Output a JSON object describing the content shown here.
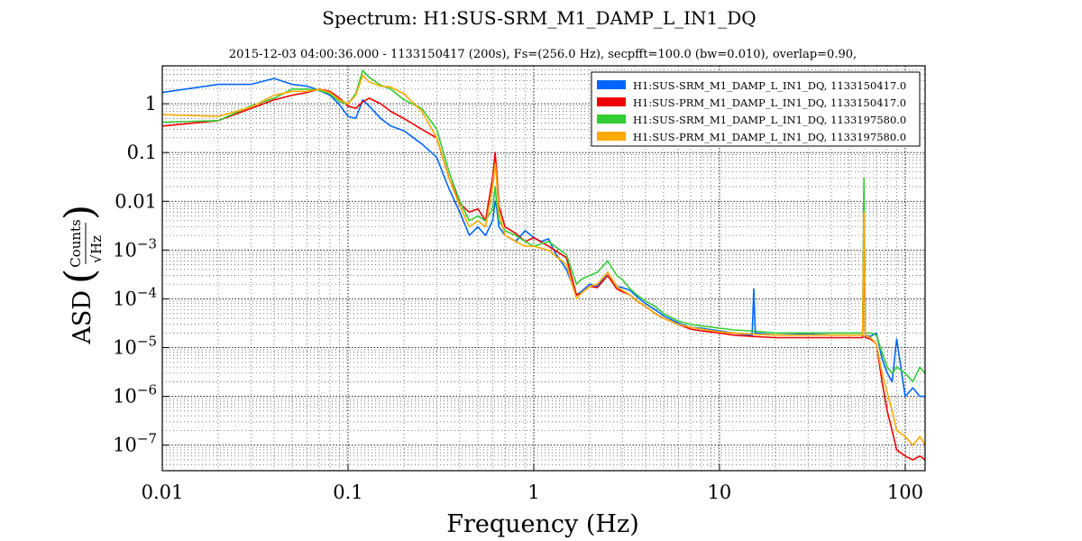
{
  "chart_data": {
    "type": "line",
    "title": "Spectrum: H1:SUS-SRM_M1_DAMP_L_IN1_DQ",
    "subtitle": "2015-12-03 04:00:36.000 - 1133150417 (200s), Fs=(256.0 Hz), secpfft=100.0 (bw=0.010), overlap=0.90,",
    "xlabel": "Frequency (Hz)",
    "ylabel": "ASD",
    "ylabel_fraction_numerator": "Counts",
    "ylabel_fraction_denominator": "Hz",
    "x_scale": "log",
    "y_scale": "log",
    "xlim": [
      0.01,
      128
    ],
    "ylim": [
      3e-08,
      6
    ],
    "grid": true,
    "legend_position": "top-right",
    "x_ticks": [
      {
        "value": 0.01,
        "label": "0.01"
      },
      {
        "value": 0.1,
        "label": "0.1"
      },
      {
        "value": 1,
        "label": "1"
      },
      {
        "value": 10,
        "label": "10"
      },
      {
        "value": 100,
        "label": "100"
      }
    ],
    "y_ticks": [
      {
        "value": 1,
        "label": "1",
        "base": "",
        "exp": ""
      },
      {
        "value": 0.1,
        "label": "0.1",
        "base": "",
        "exp": ""
      },
      {
        "value": 0.01,
        "label": "0.01",
        "base": "",
        "exp": ""
      },
      {
        "value": 0.001,
        "label": "",
        "base": "10",
        "exp": "−3"
      },
      {
        "value": 0.0001,
        "label": "",
        "base": "10",
        "exp": "−4"
      },
      {
        "value": 1e-05,
        "label": "",
        "base": "10",
        "exp": "−5"
      },
      {
        "value": 1e-06,
        "label": "",
        "base": "10",
        "exp": "−6"
      },
      {
        "value": 1e-07,
        "label": "",
        "base": "10",
        "exp": "−7"
      }
    ],
    "series": [
      {
        "name": "H1:SUS-SRM_M1_DAMP_L_IN1_DQ, 1133150417.0",
        "color": "#0066ff",
        "x": [
          0.01,
          0.02,
          0.03,
          0.04,
          0.05,
          0.06,
          0.07,
          0.08,
          0.09,
          0.1,
          0.11,
          0.12,
          0.13,
          0.15,
          0.17,
          0.2,
          0.25,
          0.3,
          0.35,
          0.4,
          0.45,
          0.5,
          0.55,
          0.6,
          0.62,
          0.63,
          0.65,
          0.7,
          0.8,
          0.9,
          1.0,
          1.1,
          1.2,
          1.3,
          1.5,
          1.7,
          1.8,
          2.0,
          2.2,
          2.5,
          2.8,
          3.0,
          3.3,
          3.6,
          4.0,
          4.5,
          5.0,
          6.0,
          7.0,
          8.0,
          10,
          12,
          15,
          15.3,
          15.6,
          20,
          30,
          40,
          50,
          55,
          59,
          60,
          61,
          65,
          70,
          75,
          80,
          85,
          90,
          100,
          110,
          120,
          128
        ],
        "y": [
          1.7,
          2.5,
          2.5,
          3.3,
          2.5,
          2.3,
          1.9,
          1.5,
          0.95,
          0.55,
          0.5,
          1.2,
          0.9,
          0.5,
          0.35,
          0.28,
          0.15,
          0.08,
          0.018,
          0.006,
          0.002,
          0.003,
          0.002,
          0.004,
          0.01,
          0.008,
          0.003,
          0.002,
          0.0015,
          0.0025,
          0.0018,
          0.0015,
          0.0017,
          0.0009,
          0.0004,
          0.00012,
          0.00014,
          0.0002,
          0.00018,
          0.00035,
          0.00018,
          0.00017,
          0.00015,
          0.00011,
          8e-05,
          6e-05,
          4.5e-05,
          3.2e-05,
          2.6e-05,
          2.5e-05,
          2.2e-05,
          2e-05,
          1.8e-05,
          0.00016,
          2e-05,
          1.8e-05,
          1.9e-05,
          1.8e-05,
          1.8e-05,
          1.8e-05,
          1.8e-05,
          0.015,
          1.8e-05,
          1.7e-05,
          2e-05,
          6e-06,
          3e-06,
          2e-06,
          1.5e-05,
          1e-06,
          1.5e-06,
          1e-06,
          1e-06
        ]
      },
      {
        "name": "H1:SUS-PRM_M1_DAMP_L_IN1_DQ, 1133150417.0",
        "color": "#ee0000",
        "x": [
          0.01,
          0.02,
          0.03,
          0.04,
          0.05,
          0.06,
          0.07,
          0.08,
          0.09,
          0.1,
          0.11,
          0.12,
          0.13,
          0.15,
          0.17,
          0.2,
          0.25,
          0.3,
          0.35,
          0.4,
          0.45,
          0.5,
          0.55,
          0.6,
          0.62,
          0.63,
          0.65,
          0.7,
          0.8,
          0.9,
          1.0,
          1.2,
          1.5,
          1.7,
          1.8,
          2.0,
          2.2,
          2.5,
          2.8,
          3.0,
          3.3,
          3.6,
          4.0,
          4.5,
          5.0,
          6.0,
          7.0,
          8.0,
          10,
          12,
          15,
          20,
          30,
          40,
          50,
          55,
          59,
          60,
          61,
          65,
          70,
          75,
          80,
          85,
          90,
          100,
          110,
          120,
          128
        ],
        "y": [
          0.35,
          0.45,
          0.8,
          1.2,
          1.5,
          1.7,
          2.0,
          1.8,
          1.3,
          0.9,
          0.8,
          1.1,
          1.3,
          1.0,
          0.7,
          0.5,
          0.3,
          0.2,
          0.03,
          0.009,
          0.006,
          0.007,
          0.004,
          0.03,
          0.1,
          0.045,
          0.008,
          0.003,
          0.0022,
          0.0015,
          0.0018,
          0.0012,
          0.0007,
          0.00012,
          0.00013,
          0.00018,
          0.00017,
          0.0003,
          0.00016,
          0.00014,
          0.00012,
          9e-05,
          7e-05,
          5e-05,
          4e-05,
          3e-05,
          2.4e-05,
          2.2e-05,
          2e-05,
          1.8e-05,
          1.7e-05,
          1.6e-05,
          1.6e-05,
          1.6e-05,
          1.6e-05,
          1.6e-05,
          1.6e-05,
          0.003,
          1.6e-05,
          1.5e-05,
          1.2e-05,
          2e-06,
          5e-07,
          2e-07,
          8e-08,
          6e-08,
          5e-08,
          6e-08,
          5e-08
        ]
      },
      {
        "name": "H1:SUS-SRM_M1_DAMP_L_IN1_DQ, 1133197580.0",
        "color": "#33cc33",
        "x": [
          0.01,
          0.02,
          0.03,
          0.04,
          0.05,
          0.06,
          0.07,
          0.08,
          0.09,
          0.1,
          0.11,
          0.12,
          0.13,
          0.15,
          0.17,
          0.2,
          0.25,
          0.3,
          0.35,
          0.4,
          0.45,
          0.5,
          0.55,
          0.6,
          0.62,
          0.63,
          0.65,
          0.7,
          0.8,
          0.9,
          1.0,
          1.2,
          1.5,
          1.7,
          1.8,
          2.0,
          2.2,
          2.5,
          2.8,
          3.0,
          3.3,
          3.6,
          4.0,
          4.5,
          5.0,
          6.0,
          7.0,
          8.0,
          10,
          12,
          15,
          20,
          30,
          40,
          50,
          55,
          59,
          60,
          61,
          65,
          70,
          75,
          80,
          85,
          90,
          100,
          110,
          120,
          128
        ],
        "y": [
          0.42,
          0.45,
          0.9,
          1.3,
          2.0,
          2.0,
          1.9,
          1.6,
          1.1,
          1.0,
          1.6,
          4.8,
          3.5,
          2.4,
          2.0,
          1.2,
          0.8,
          0.3,
          0.04,
          0.01,
          0.004,
          0.005,
          0.004,
          0.007,
          0.02,
          0.01,
          0.004,
          0.0025,
          0.002,
          0.0015,
          0.0012,
          0.0015,
          0.0008,
          0.0002,
          0.00025,
          0.0003,
          0.00035,
          0.0006,
          0.0003,
          0.00025,
          0.00016,
          0.00012,
          9e-05,
          7e-05,
          5e-05,
          3.5e-05,
          3e-05,
          2.8e-05,
          2.5e-05,
          2.3e-05,
          2.2e-05,
          2e-05,
          2e-05,
          2e-05,
          2e-05,
          2e-05,
          2e-05,
          0.03,
          2e-05,
          2e-05,
          1.8e-05,
          8e-06,
          4e-06,
          3e-06,
          4e-06,
          3e-06,
          2e-06,
          4e-06,
          3e-06
        ]
      },
      {
        "name": "H1:SUS-PRM_M1_DAMP_L_IN1_DQ, 1133197580.0",
        "color": "#ffaa00",
        "x": [
          0.01,
          0.02,
          0.03,
          0.04,
          0.05,
          0.06,
          0.07,
          0.08,
          0.09,
          0.1,
          0.11,
          0.12,
          0.13,
          0.15,
          0.17,
          0.2,
          0.25,
          0.3,
          0.35,
          0.4,
          0.45,
          0.5,
          0.55,
          0.6,
          0.62,
          0.63,
          0.65,
          0.7,
          0.8,
          0.9,
          1.0,
          1.2,
          1.5,
          1.7,
          1.8,
          2.0,
          2.2,
          2.5,
          2.8,
          3.0,
          3.3,
          3.6,
          4.0,
          4.5,
          5.0,
          6.0,
          7.0,
          8.0,
          10,
          12,
          15,
          20,
          30,
          40,
          50,
          55,
          59,
          60,
          61,
          65,
          70,
          75,
          80,
          85,
          90,
          100,
          110,
          120,
          128
        ],
        "y": [
          0.6,
          0.55,
          0.85,
          1.5,
          1.8,
          1.8,
          2.0,
          1.7,
          1.2,
          1.0,
          1.5,
          3.8,
          2.8,
          2.3,
          2.2,
          1.6,
          0.7,
          0.2,
          0.03,
          0.008,
          0.003,
          0.004,
          0.003,
          0.02,
          0.06,
          0.03,
          0.006,
          0.002,
          0.0015,
          0.0012,
          0.0012,
          0.001,
          0.0005,
          0.0001,
          0.00013,
          0.00018,
          0.0002,
          0.00035,
          0.00018,
          0.00015,
          0.00012,
          9e-05,
          7e-05,
          5e-05,
          4e-05,
          3e-05,
          2.6e-05,
          2.4e-05,
          2.1e-05,
          2e-05,
          1.9e-05,
          1.8e-05,
          1.8e-05,
          1.8e-05,
          1.8e-05,
          1.8e-05,
          1.8e-05,
          0.006,
          1.8e-05,
          1.6e-05,
          1.2e-05,
          3e-06,
          1.2e-06,
          5e-07,
          2e-07,
          1.5e-07,
          1e-07,
          1.5e-07,
          1e-07
        ]
      }
    ]
  }
}
